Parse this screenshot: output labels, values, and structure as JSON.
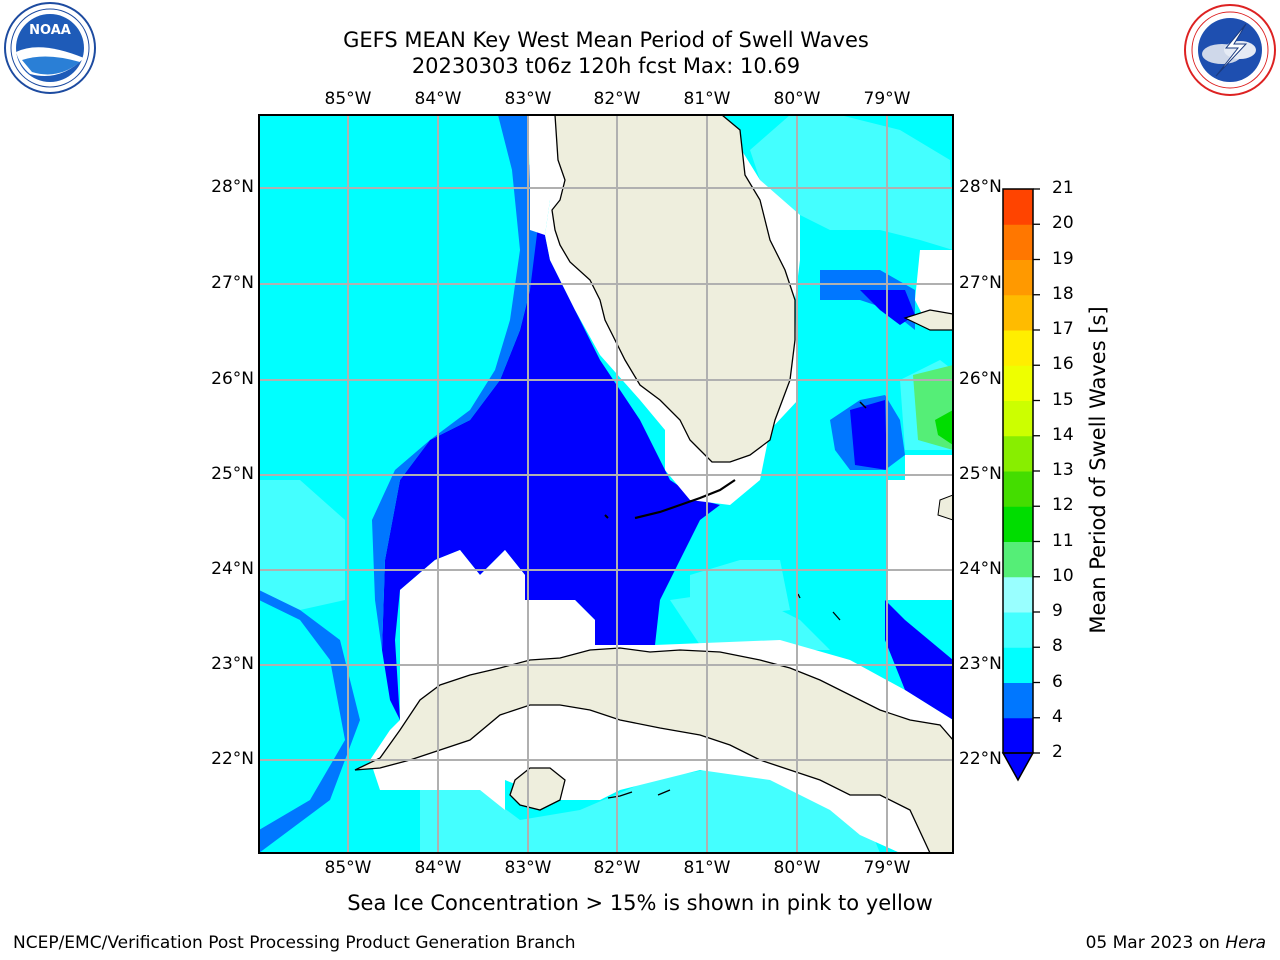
{
  "title": {
    "line1": "GEFS MEAN Key West Mean Period of Swell Waves",
    "line2": "20230303 t06z 120h fcst   Max: 10.69"
  },
  "logos": {
    "left": {
      "name": "noaa-logo",
      "text": "NOAA",
      "ring_text": "NATIONAL OCEANIC AND ATMOSPHERIC ADMINISTRATION · U.S. DEPARTMENT OF COMMERCE"
    },
    "right": {
      "name": "nws-logo",
      "ring_text": "NATIONAL WEATHER SERVICE"
    }
  },
  "map": {
    "lon_labels": [
      "85°W",
      "84°W",
      "83°W",
      "82°W",
      "81°W",
      "80°W",
      "79°W"
    ],
    "lat_labels": [
      "28°N",
      "27°N",
      "26°N",
      "25°N",
      "24°N",
      "23°N",
      "22°N"
    ],
    "land_color": "#eeeedd",
    "grid_color": "#b0b0b0"
  },
  "colorbar": {
    "label": "Mean Period of Swell Waves [s]",
    "ticks": [
      "2",
      "4",
      "6",
      "8",
      "9",
      "10",
      "11",
      "12",
      "13",
      "14",
      "15",
      "16",
      "17",
      "18",
      "19",
      "20",
      "21"
    ],
    "colors": [
      "#0000ff",
      "#0077ff",
      "#00ffff",
      "#44ffff",
      "#99ffff",
      "#55ee77",
      "#00dd00",
      "#44dd00",
      "#88ee00",
      "#ccff00",
      "#eeff00",
      "#ffee00",
      "#ffbb00",
      "#ff9900",
      "#ff7700",
      "#ff4400",
      "#ff0000"
    ]
  },
  "subtitle": "Sea Ice Concentration > 15% is shown in pink to yellow",
  "footer": {
    "left": "NCEP/EMC/Verification Post Processing Product Generation Branch",
    "date": "05 Mar 2023 on ",
    "machine": "Hera"
  }
}
